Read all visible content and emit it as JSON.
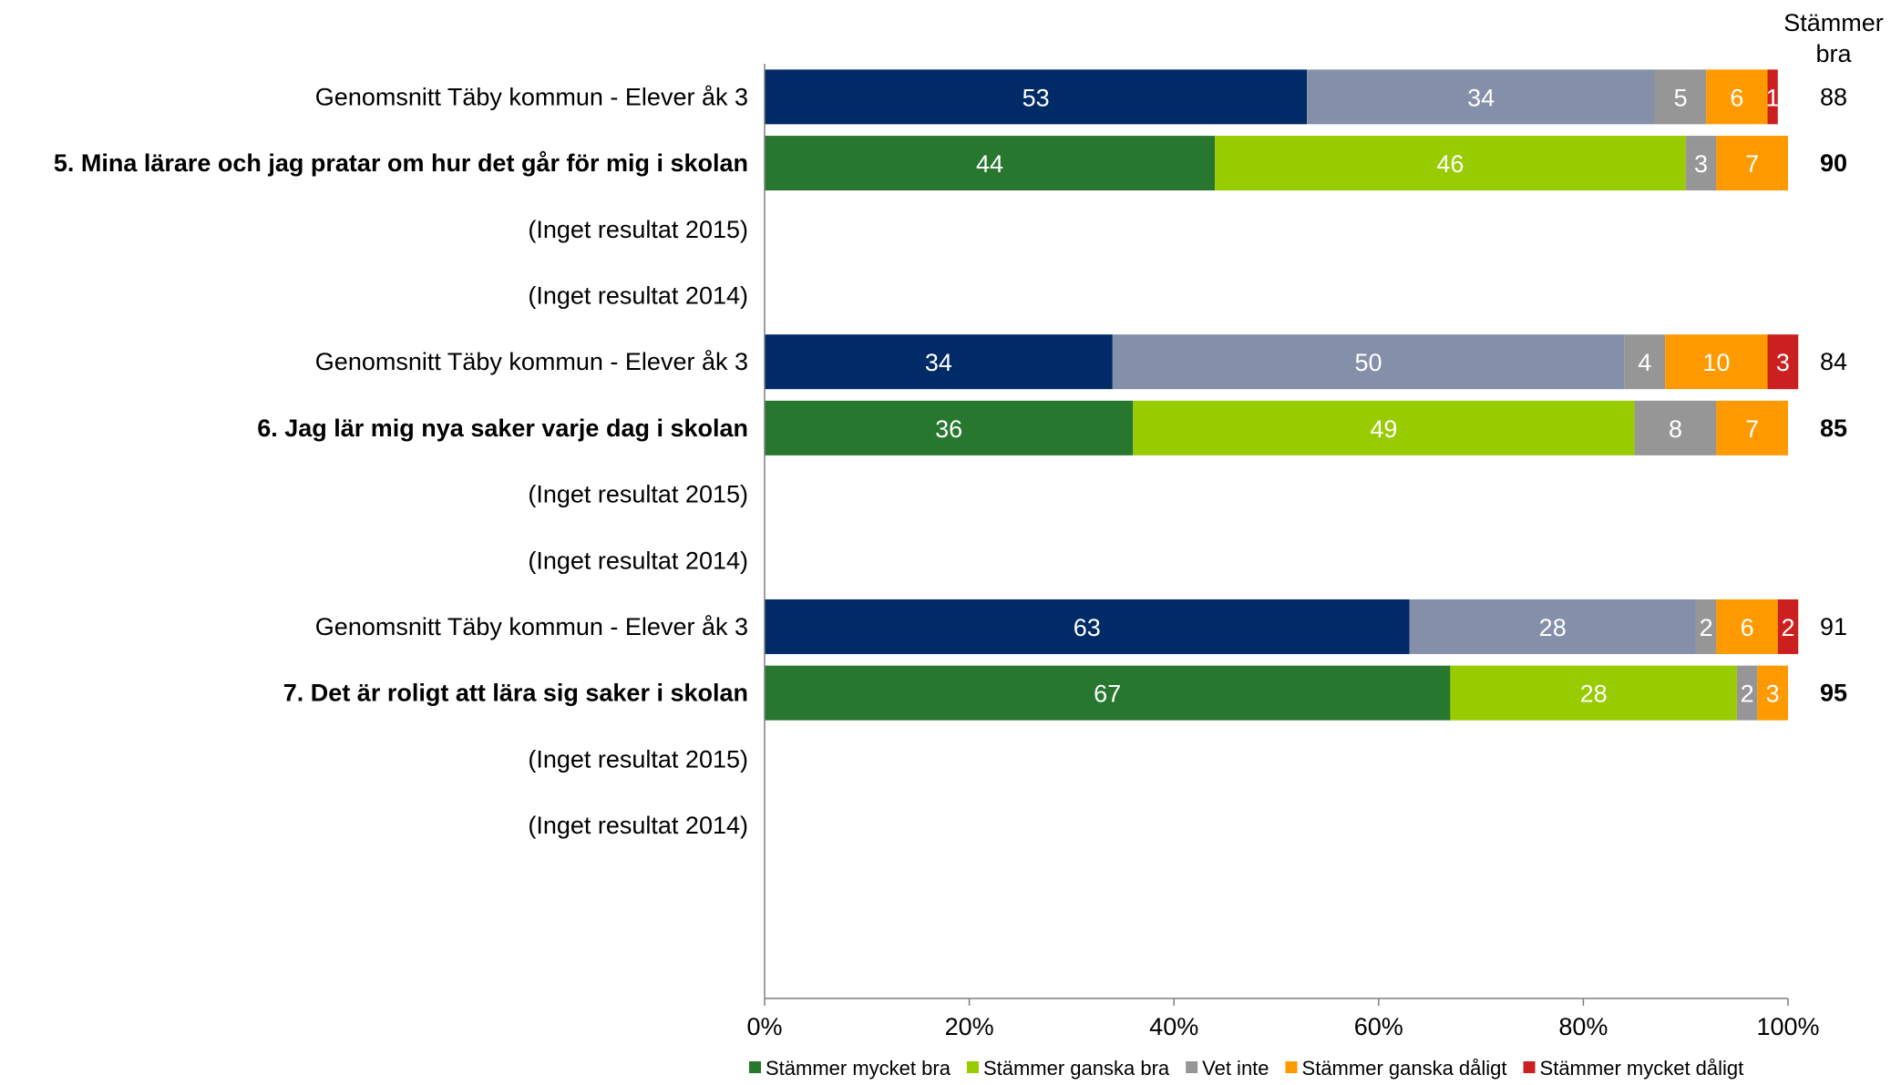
{
  "chart_data": {
    "type": "bar",
    "orientation": "horizontal",
    "stacked": true,
    "percent_axis": true,
    "xlim": [
      0,
      100
    ],
    "ticks": [
      "0%",
      "20%",
      "40%",
      "60%",
      "80%",
      "100%"
    ],
    "right_header": [
      "Stämmer",
      "bra"
    ],
    "legend_position": "bottom",
    "series": [
      {
        "name": "Stämmer mycket bra",
        "color": "#002B66"
      },
      {
        "name": "Stämmer ganska bra",
        "color": "#98CC00"
      },
      {
        "name": "Vet inte",
        "color": "#969696"
      },
      {
        "name": "Stämmer ganska dåligt",
        "color": "#FF9900"
      },
      {
        "name": "Stämmer mycket dåligt",
        "color": "#CC1F1F"
      }
    ],
    "rows": [
      {
        "label": "Genomsnitt Täby kommun - Elever åk 3",
        "bold": false,
        "kind": "avg",
        "values": [
          53,
          34,
          5,
          6,
          1
        ],
        "seg_labels": [
          "53",
          "34",
          "5",
          "6",
          "1"
        ],
        "total": "88"
      },
      {
        "label": "5. Mina lärare och jag pratar om hur det går för mig i skolan",
        "bold": true,
        "kind": "school",
        "values": [
          44,
          46,
          3,
          7,
          0
        ],
        "seg_labels": [
          "44",
          "46",
          "3",
          "7",
          "0"
        ],
        "total": "90"
      },
      {
        "label": "(Inget resultat 2015)",
        "bold": false,
        "kind": "none",
        "values": [],
        "seg_labels": [],
        "total": ""
      },
      {
        "label": "(Inget resultat 2014)",
        "bold": false,
        "kind": "none",
        "values": [],
        "seg_labels": [],
        "total": ""
      },
      {
        "label": "Genomsnitt Täby kommun - Elever åk 3",
        "bold": false,
        "kind": "avg",
        "values": [
          34,
          50,
          4,
          10,
          3
        ],
        "seg_labels": [
          "34",
          "50",
          "4",
          "10",
          "3"
        ],
        "total": "84"
      },
      {
        "label": "6. Jag lär mig nya saker varje dag i skolan",
        "bold": true,
        "kind": "school",
        "values": [
          36,
          49,
          8,
          7,
          0
        ],
        "seg_labels": [
          "36",
          "49",
          "8",
          "7",
          "0"
        ],
        "total": "85"
      },
      {
        "label": "(Inget resultat 2015)",
        "bold": false,
        "kind": "none",
        "values": [],
        "seg_labels": [],
        "total": ""
      },
      {
        "label": "(Inget resultat 2014)",
        "bold": false,
        "kind": "none",
        "values": [],
        "seg_labels": [],
        "total": ""
      },
      {
        "label": "Genomsnitt Täby kommun - Elever åk 3",
        "bold": false,
        "kind": "avg",
        "values": [
          63,
          28,
          2,
          6,
          2
        ],
        "seg_labels": [
          "63",
          "28",
          "2",
          "6",
          "2"
        ],
        "total": "91"
      },
      {
        "label": "7. Det är roligt att lära sig saker i skolan",
        "bold": true,
        "kind": "school",
        "values": [
          67,
          28,
          2,
          3,
          0
        ],
        "seg_labels": [
          "67",
          "28",
          "2",
          "3",
          "0"
        ],
        "total": "95"
      },
      {
        "label": "(Inget resultat 2015)",
        "bold": false,
        "kind": "none",
        "values": [],
        "seg_labels": [],
        "total": ""
      },
      {
        "label": "(Inget resultat 2014)",
        "bold": false,
        "kind": "none",
        "values": [],
        "seg_labels": [],
        "total": ""
      }
    ],
    "palettes": {
      "avg": [
        "#002B66",
        "#8490AA",
        "#969696",
        "#FF9900",
        "#CC1F1F"
      ],
      "school": [
        "#27772F",
        "#98CC00",
        "#969696",
        "#FF9900",
        "#CC1F1F"
      ]
    }
  }
}
